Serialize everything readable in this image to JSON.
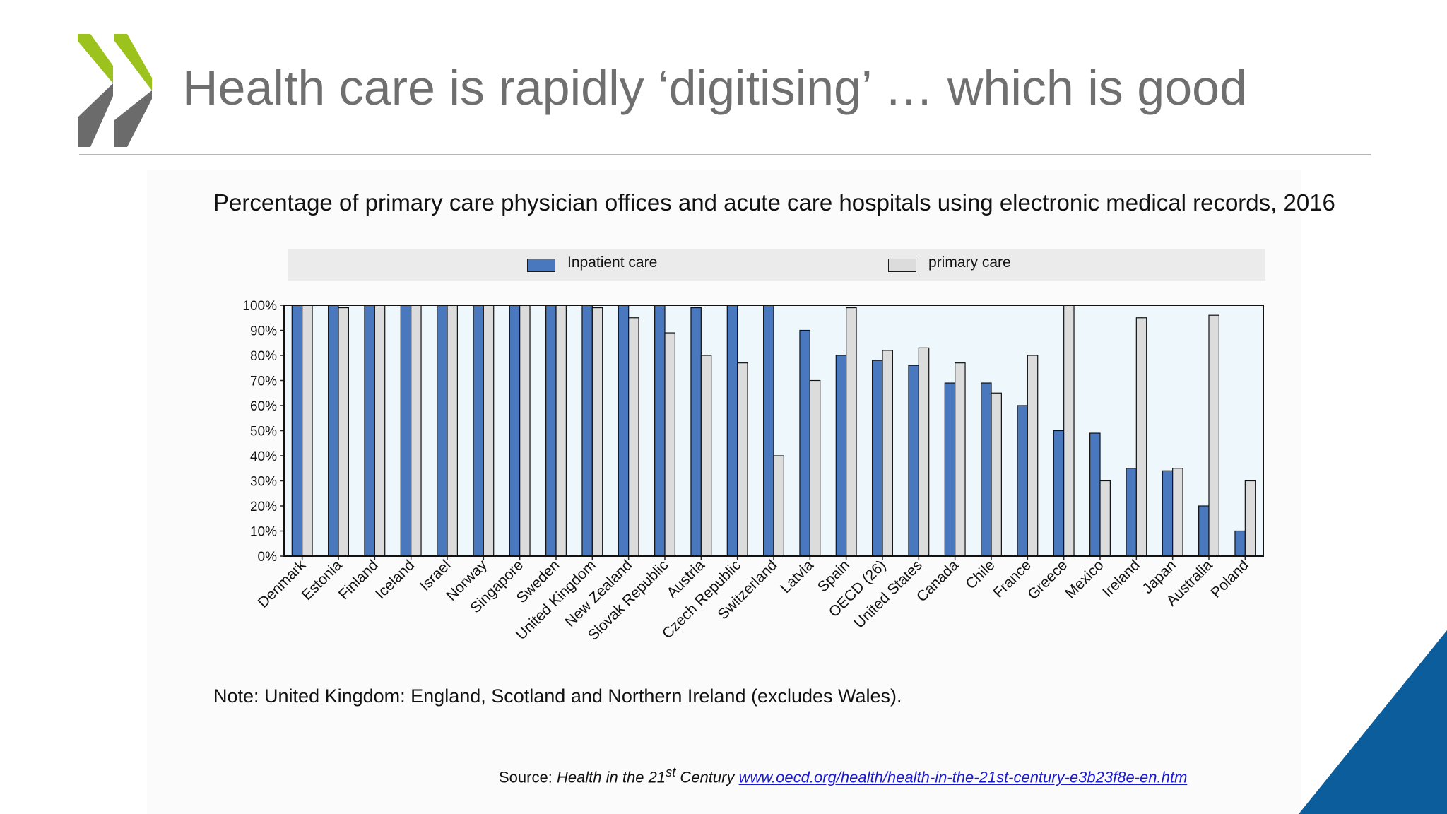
{
  "slide": {
    "title": "Health care is rapidly ‘digitising’ … which is good"
  },
  "note": "Note: United Kingdom: England, Scotland and Northern Ireland (excludes Wales).",
  "source": {
    "prefix": "Source: ",
    "publication": "Health in the 21",
    "superscript": "st",
    "publication_suffix": " Century ",
    "link_text": "www.oecd.org/health/health-in-the-21st-century-e3b23f8e-en.htm"
  },
  "colors": {
    "inpatient": "#4a78be",
    "primary": "#dcdcdc",
    "plot_background": "#eef8fc",
    "brand_green": "#9cc21e",
    "brand_grey": "#6b6b6b",
    "brand_blue": "#0c5d9b"
  },
  "chart_data": {
    "type": "bar",
    "title": "Percentage of primary care physician offices and acute care hospitals using electronic medical records, 2016",
    "legend_position": "top",
    "ylim": [
      0,
      100
    ],
    "yticks": [
      "0%",
      "10%",
      "20%",
      "30%",
      "40%",
      "50%",
      "60%",
      "70%",
      "80%",
      "90%",
      "100%"
    ],
    "grid": false,
    "categories": [
      "Denmark",
      "Estonia",
      "Finland",
      "Iceland",
      "Israel",
      "Norway",
      "Singapore",
      "Sweden",
      "United Kingdom",
      "New Zealand",
      "Slovak Republic",
      "Austria",
      "Czech Republic",
      "Switzerland",
      "Latvia",
      "Spain",
      "OECD (26)",
      "United States",
      "Canada",
      "Chile",
      "France",
      "Greece",
      "Mexico",
      "Ireland",
      "Japan",
      "Australia",
      "Poland"
    ],
    "series": [
      {
        "name": "Inpatient care",
        "values": [
          100,
          100,
          100,
          100,
          100,
          100,
          100,
          100,
          100,
          100,
          100,
          99,
          100,
          100,
          90,
          80,
          78,
          76,
          69,
          69,
          60,
          50,
          49,
          35,
          34,
          20,
          10
        ]
      },
      {
        "name": "primary care",
        "values": [
          100,
          99,
          100,
          100,
          100,
          100,
          100,
          100,
          99,
          95,
          89,
          80,
          77,
          40,
          70,
          99,
          82,
          83,
          77,
          65,
          80,
          100,
          30,
          95,
          35,
          96,
          30
        ]
      }
    ]
  }
}
